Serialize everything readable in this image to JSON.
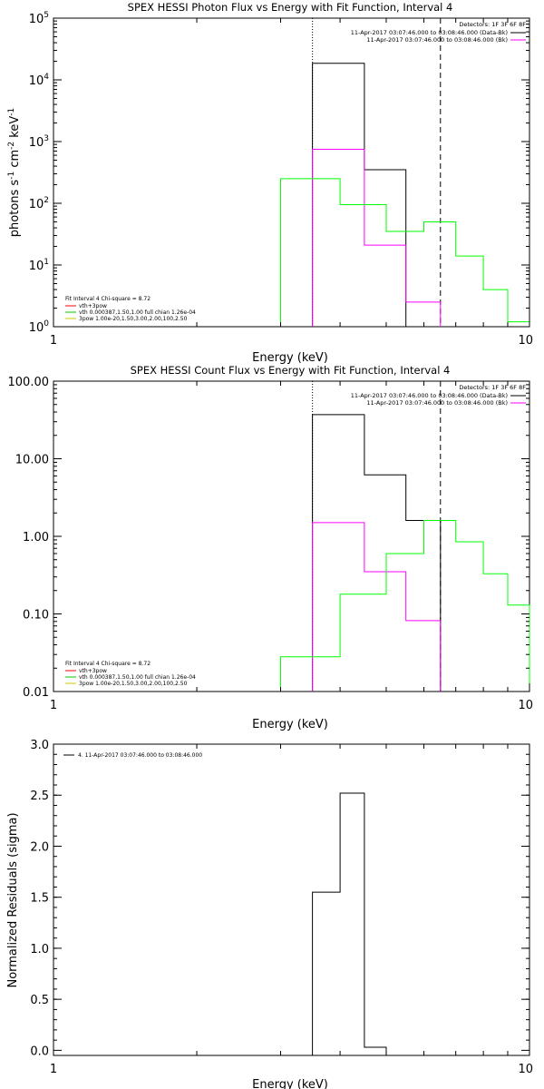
{
  "chart_data": [
    {
      "type": "line",
      "title": "SPEX HESSI Photon Flux vs Energy with Fit Function, Interval 4",
      "xlabel": "Energy (keV)",
      "ylabel_parts": [
        "photons s",
        "-1",
        " cm",
        "-2",
        " keV",
        "-1"
      ],
      "x_scale": "log",
      "y_scale": "log",
      "xlim": [
        1,
        10
      ],
      "ylim": [
        1,
        100000
      ],
      "x_ticks": [
        {
          "v": 1,
          "label": "1"
        },
        {
          "v": 10,
          "label": "10"
        }
      ],
      "y_ticks": [
        {
          "v": 1,
          "base": "10",
          "exp": "0"
        },
        {
          "v": 10,
          "base": "10",
          "exp": "1"
        },
        {
          "v": 100,
          "base": "10",
          "exp": "2"
        },
        {
          "v": 1000,
          "base": "10",
          "exp": "3"
        },
        {
          "v": 10000,
          "base": "10",
          "exp": "4"
        },
        {
          "v": 100000,
          "base": "10",
          "exp": "5"
        }
      ],
      "vlines": [
        {
          "x": 3.5,
          "style": "dotted"
        },
        {
          "x": 6.5,
          "style": "dashed"
        }
      ],
      "legend_right": {
        "placement": "top-right",
        "header": "Detectors: 1F 3F 6F 8F",
        "lines": [
          {
            "text": "11-Apr-2017 03:07:46.000 to 03:08:46.000 (Data-Bk)",
            "color": "#000000"
          },
          {
            "text": "11-Apr-2017 03:07:46.000 to 03:08:46.000 (Bk)",
            "color": "#ff00ff"
          }
        ]
      },
      "legend_left": {
        "placement": "bottom-left",
        "header": "Fit Interval 4   Chi-square = 8.72",
        "lines": [
          {
            "text": "vth+3pow",
            "color": "#ff0000"
          },
          {
            "text": "vth 0.000387,1.50,1.00   full chian 1.26e-04",
            "color": "#00cc00"
          },
          {
            "text": "3pow 1.00e-20,1.50,3.00,2.00,100,2.50",
            "color": "#cccc00"
          }
        ]
      },
      "series": [
        {
          "color": "#000000",
          "edges": [
            3.5,
            4.0,
            4.5,
            5.0,
            5.5,
            6.0,
            6.5
          ],
          "values": [
            18500,
            18500,
            350,
            350,
            1,
            1
          ]
        },
        {
          "color": "#ff00ff",
          "edges": [
            3.5,
            4.0,
            4.5,
            5.0,
            5.5,
            6.0,
            6.5
          ],
          "values": [
            750,
            750,
            21,
            21,
            2.5,
            2.5
          ]
        },
        {
          "color": "#00ff00",
          "edges": [
            3.0,
            3.5,
            4.0,
            4.5,
            5.0,
            5.5,
            6.0,
            6.5,
            7.0,
            7.5,
            8.0,
            8.5,
            9.0,
            9.5,
            10.0
          ],
          "values": [
            250,
            250,
            95,
            95,
            35,
            35,
            50,
            50,
            14,
            14,
            4,
            4,
            1.2,
            1.2
          ]
        }
      ]
    },
    {
      "type": "line",
      "title": "SPEX HESSI Count Flux vs Energy with Fit Function, Interval 4",
      "xlabel": "Energy (keV)",
      "x_scale": "log",
      "y_scale": "log",
      "xlim": [
        1,
        10
      ],
      "ylim": [
        0.01,
        100
      ],
      "x_ticks": [
        {
          "v": 1,
          "label": "1"
        },
        {
          "v": 10,
          "label": "10"
        }
      ],
      "y_ticks": [
        {
          "v": 0.01,
          "label": "0.01"
        },
        {
          "v": 0.1,
          "label": "0.10"
        },
        {
          "v": 1,
          "label": "1.00"
        },
        {
          "v": 10,
          "label": "10.00"
        },
        {
          "v": 100,
          "label": "100.00"
        }
      ],
      "vlines": [
        {
          "x": 3.5,
          "style": "dotted"
        },
        {
          "x": 6.5,
          "style": "dashed"
        }
      ],
      "legend_right": {
        "placement": "top-right",
        "header": "Detectors: 1F 3F 6F 8F",
        "lines": [
          {
            "text": "11-Apr-2017 03:07:46.000 to 03:08:46.000 (Data-Bk)",
            "color": "#000000"
          },
          {
            "text": "11-Apr-2017 03:07:46.000 to 03:08:46.000 (Bk)",
            "color": "#ff00ff"
          }
        ]
      },
      "legend_left": {
        "placement": "bottom-left",
        "header": "Fit Interval 4   Chi-square = 8.72",
        "lines": [
          {
            "text": "vth+3pow",
            "color": "#ff0000"
          },
          {
            "text": "vth 0.000387,1.50,1.00   full chian 1.26e-04",
            "color": "#00cc00"
          },
          {
            "text": "3pow 1.00e-20,1.50,3.00,2.00,100,2.50",
            "color": "#cccc00"
          }
        ]
      },
      "series": [
        {
          "color": "#000000",
          "edges": [
            3.5,
            4.0,
            4.5,
            5.0,
            5.5,
            6.0,
            6.5
          ],
          "values": [
            37,
            37,
            6.2,
            6.2,
            1.6,
            1.6
          ]
        },
        {
          "color": "#ff00ff",
          "edges": [
            3.5,
            4.0,
            4.5,
            5.0,
            5.5,
            6.0,
            6.5
          ],
          "values": [
            1.5,
            1.5,
            0.35,
            0.35,
            0.082,
            0.082
          ]
        },
        {
          "color": "#00ff00",
          "edges": [
            3.0,
            3.5,
            4.0,
            4.5,
            5.0,
            5.5,
            6.0,
            6.5,
            7.0,
            7.5,
            8.0,
            8.5,
            9.0,
            9.5,
            10.0
          ],
          "values": [
            0.028,
            0.028,
            0.18,
            0.18,
            0.6,
            0.6,
            1.6,
            1.6,
            0.85,
            0.85,
            0.33,
            0.33,
            0.13,
            0.13
          ]
        }
      ]
    },
    {
      "type": "line",
      "title": "",
      "xlabel": "Energy (keV)",
      "ylabel": "Normalized Residuals (sigma)",
      "x_scale": "log",
      "y_scale": "linear",
      "xlim": [
        1,
        10
      ],
      "ylim": [
        -0.05,
        3.0
      ],
      "x_ticks": [
        {
          "v": 1,
          "label": "1"
        },
        {
          "v": 10,
          "label": "10"
        }
      ],
      "y_ticks": [
        {
          "v": 0,
          "label": "0.0"
        },
        {
          "v": 0.5,
          "label": "0.5"
        },
        {
          "v": 1,
          "label": "1.0"
        },
        {
          "v": 1.5,
          "label": "1.5"
        },
        {
          "v": 2,
          "label": "2.0"
        },
        {
          "v": 2.5,
          "label": "2.5"
        },
        {
          "v": 3,
          "label": "3.0"
        }
      ],
      "vlines": [],
      "legend_left": {
        "placement": "top-left",
        "header": "",
        "lines": [
          {
            "text": "4. 11-Apr-2017 03:07:46.000 to 03:08:46.000",
            "color": "#000000"
          }
        ]
      },
      "series": [
        {
          "color": "#000000",
          "edges": [
            3.5,
            4.0,
            4.5,
            5.0
          ],
          "values": [
            1.55,
            2.52,
            0.03
          ]
        }
      ]
    }
  ]
}
